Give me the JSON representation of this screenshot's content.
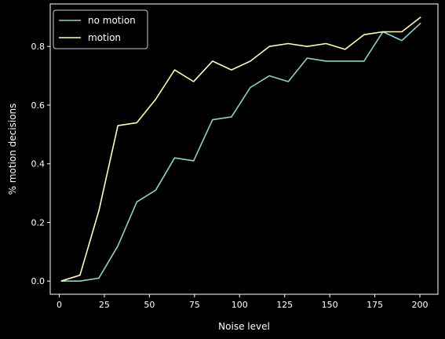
{
  "chart_data": {
    "type": "line",
    "xlabel": "Noise level",
    "ylabel": "% motion decisions",
    "xlim": [
      -5,
      210
    ],
    "ylim": [
      -0.045,
      0.945
    ],
    "xticks": [
      0,
      25,
      50,
      75,
      100,
      125,
      150,
      175,
      200
    ],
    "yticks": [
      0.0,
      0.2,
      0.4,
      0.6,
      0.8
    ],
    "xtick_labels": [
      "0",
      "25",
      "50",
      "75",
      "100",
      "125",
      "150",
      "175",
      "200"
    ],
    "ytick_labels": [
      "0.0",
      "0.2",
      "0.4",
      "0.6",
      "0.8"
    ],
    "grid": false,
    "legend_position": "top-left",
    "x": [
      1,
      11.5,
      22,
      32.5,
      43,
      53.5,
      64,
      74.5,
      85,
      95.5,
      106,
      116.5,
      127,
      137.5,
      148,
      158.5,
      169,
      179.5,
      190,
      200.5
    ],
    "series": [
      {
        "name": "no motion",
        "color": "#8dd3c7",
        "values": [
          0.0,
          0.0,
          0.01,
          0.12,
          0.27,
          0.31,
          0.42,
          0.41,
          0.55,
          0.56,
          0.66,
          0.7,
          0.68,
          0.76,
          0.75,
          0.75,
          0.75,
          0.85,
          0.82,
          0.88
        ]
      },
      {
        "name": "motion",
        "color": "#feffb3",
        "values": [
          0.0,
          0.02,
          0.24,
          0.53,
          0.54,
          0.62,
          0.72,
          0.68,
          0.75,
          0.72,
          0.75,
          0.8,
          0.81,
          0.8,
          0.81,
          0.79,
          0.84,
          0.85,
          0.85,
          0.9
        ]
      }
    ]
  }
}
